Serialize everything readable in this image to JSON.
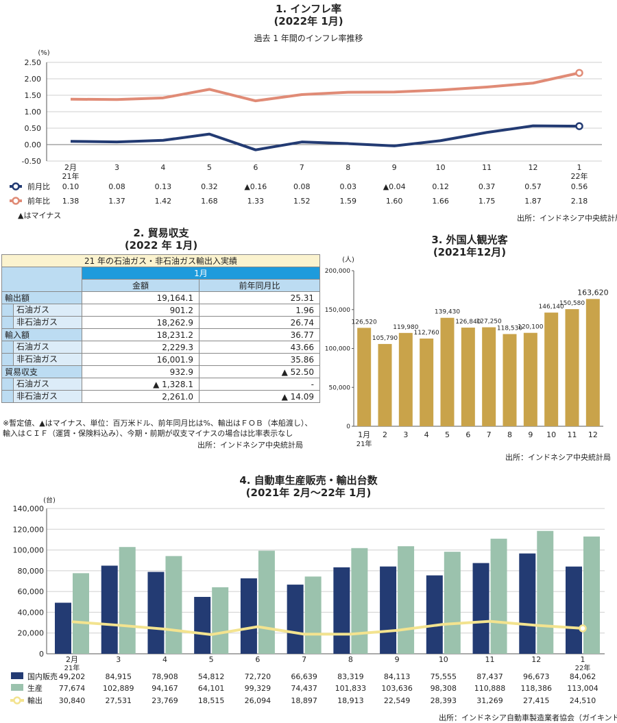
{
  "inflation": {
    "title": "1. インフレ率",
    "subtitle": "(2022年 1月)",
    "caption": "過去 1 年間のインフレ率推移",
    "unit": "(%)",
    "minus_note": "▲はマイナス",
    "source": "出所：インドネシア中央統計局",
    "mom_label": "前月比",
    "yoy_label": "前年比",
    "mom_display": [
      "0.10",
      "0.08",
      "0.13",
      "0.32",
      "▲0.16",
      "0.08",
      "0.03",
      "▲0.04",
      "0.12",
      "0.37",
      "0.57",
      "0.56"
    ],
    "yoy_display": [
      "1.38",
      "1.37",
      "1.42",
      "1.68",
      "1.33",
      "1.52",
      "1.59",
      "1.60",
      "1.66",
      "1.75",
      "1.87",
      "2.18"
    ]
  },
  "trade": {
    "title": "2. 貿易収支",
    "subtitle": "(2022 年 1月)",
    "table_title": "21 年の石油ガス・非石油ガス輸出入実績",
    "period": "1月",
    "col_amount": "金額",
    "col_yoy": "前年同月比",
    "rows": [
      {
        "label": "輸出額",
        "amount": "19,164.1",
        "yoy": "25.31",
        "group": true
      },
      {
        "label": "石油ガス",
        "amount": "901.2",
        "yoy": "1.96",
        "group": false
      },
      {
        "label": "非石油ガス",
        "amount": "18,262.9",
        "yoy": "26.74",
        "group": false
      },
      {
        "label": "輸入額",
        "amount": "18,231.2",
        "yoy": "36.77",
        "group": true
      },
      {
        "label": "石油ガス",
        "amount": "2,229.3",
        "yoy": "43.66",
        "group": false
      },
      {
        "label": "非石油ガス",
        "amount": "16,001.9",
        "yoy": "35.86",
        "group": false
      },
      {
        "label": "貿易収支",
        "amount": "932.9",
        "yoy": "▲ 52.50",
        "group": true
      },
      {
        "label": "石油ガス",
        "amount": "▲ 1,328.1",
        "yoy": "-",
        "group": false
      },
      {
        "label": "非石油ガス",
        "amount": "2,261.0",
        "yoy": "▲ 14.09",
        "group": false
      }
    ],
    "note": "※暫定値、▲はマイナス、単位：百万米ドル、前年同月比は%、輸出はＦＯＢ（本船渡し）、輸入はＣＩＦ（運賃・保険料込み）、今期・前期が収支マイナスの場合は比率表示なし",
    "source": "出所：インドネシア中央統計局"
  },
  "tourists": {
    "title": "3. 外国人観光客",
    "subtitle": "(2021年12月)",
    "unit": "(人)",
    "value_labels": [
      "126,520",
      "105,790",
      "119,980",
      "112,760",
      "139,430",
      "126,840",
      "127,250",
      "118,530",
      "120,100",
      "146,140",
      "150,580",
      "163,620"
    ],
    "source": "出所：インドネシア中央統計局"
  },
  "autos": {
    "title": "4. 自動車生産販売・輸出台数",
    "subtitle": "(2021年 2月〜22年 1月)",
    "unit": "(台)",
    "legend_sales": "国内販売",
    "legend_prod": "生産",
    "legend_export": "輸出",
    "sales_display": [
      "49,202",
      "84,915",
      "78,908",
      "54,812",
      "72,720",
      "66,639",
      "83,319",
      "84,113",
      "75,555",
      "87,437",
      "96,673",
      "84,062"
    ],
    "prod_display": [
      "77,674",
      "102,889",
      "94,167",
      "64,101",
      "99,329",
      "74,437",
      "101,833",
      "103,636",
      "98,308",
      "110,888",
      "118,386",
      "113,004"
    ],
    "export_display": [
      "30,840",
      "27,531",
      "23,769",
      "18,515",
      "26,094",
      "18,897",
      "18,913",
      "22,549",
      "28,393",
      "31,269",
      "27,415",
      "24,510"
    ],
    "source": "出所：インドネシア自動車製造業者協会（ガイキンド）"
  },
  "chart_data": [
    {
      "type": "line",
      "title": "1. インフレ率",
      "ylabel": "(%)",
      "ylim": [
        -0.5,
        2.5
      ],
      "yticks": [
        "2.50",
        "2.00",
        "1.50",
        "1.00",
        "0.50",
        "0.00",
        "-0.50"
      ],
      "x": [
        "2月",
        "3",
        "4",
        "5",
        "6",
        "7",
        "8",
        "9",
        "10",
        "11",
        "12",
        "1"
      ],
      "x_sub": {
        "0": "21年",
        "11": "22年"
      },
      "grid": true,
      "series": [
        {
          "name": "前月比",
          "color": "#233b73",
          "values": [
            0.1,
            0.08,
            0.13,
            0.32,
            -0.16,
            0.08,
            0.03,
            -0.04,
            0.12,
            0.37,
            0.57,
            0.56
          ]
        },
        {
          "name": "前年比",
          "color": "#e08b76",
          "values": [
            1.38,
            1.37,
            1.42,
            1.68,
            1.33,
            1.52,
            1.59,
            1.6,
            1.66,
            1.75,
            1.87,
            2.18
          ]
        }
      ]
    },
    {
      "type": "bar",
      "title": "3. 外国人観光客",
      "ylabel": "(人)",
      "ylim": [
        0,
        200000
      ],
      "yticks": [
        "200,000",
        "150,000",
        "100,000",
        "50,000",
        "0"
      ],
      "categories": [
        "1月",
        "2",
        "3",
        "4",
        "5",
        "6",
        "7",
        "8",
        "9",
        "10",
        "11",
        "12"
      ],
      "x_sub": {
        "0": "21年"
      },
      "color": "#c9a34a",
      "values": [
        126520,
        105790,
        119980,
        112760,
        139430,
        126840,
        127250,
        118530,
        120100,
        146140,
        150580,
        163620
      ]
    },
    {
      "type": "bar",
      "title": "4. 自動車生産販売・輸出台数",
      "ylabel": "(台)",
      "ylim": [
        0,
        140000
      ],
      "yticks": [
        "140,000",
        "120,000",
        "100,000",
        "80,000",
        "60,000",
        "40,000",
        "20,000",
        "0"
      ],
      "categories": [
        "2月",
        "3",
        "4",
        "5",
        "6",
        "7",
        "8",
        "9",
        "10",
        "11",
        "12",
        "1"
      ],
      "x_sub": {
        "0": "21年",
        "11": "22年"
      },
      "grid": true,
      "series": [
        {
          "name": "国内販売",
          "type": "bar",
          "color": "#233b73",
          "values": [
            49202,
            84915,
            78908,
            54812,
            72720,
            66639,
            83319,
            84113,
            75555,
            87437,
            96673,
            84062
          ]
        },
        {
          "name": "生産",
          "type": "bar",
          "color": "#9bc2ad",
          "values": [
            77674,
            102889,
            94167,
            64101,
            99329,
            74437,
            101833,
            103636,
            98308,
            110888,
            118386,
            113004
          ]
        },
        {
          "name": "輸出",
          "type": "line",
          "color": "#f3e38f",
          "values": [
            30840,
            27531,
            23769,
            18515,
            26094,
            18897,
            18913,
            22549,
            28393,
            31269,
            27415,
            24510
          ]
        }
      ]
    }
  ]
}
